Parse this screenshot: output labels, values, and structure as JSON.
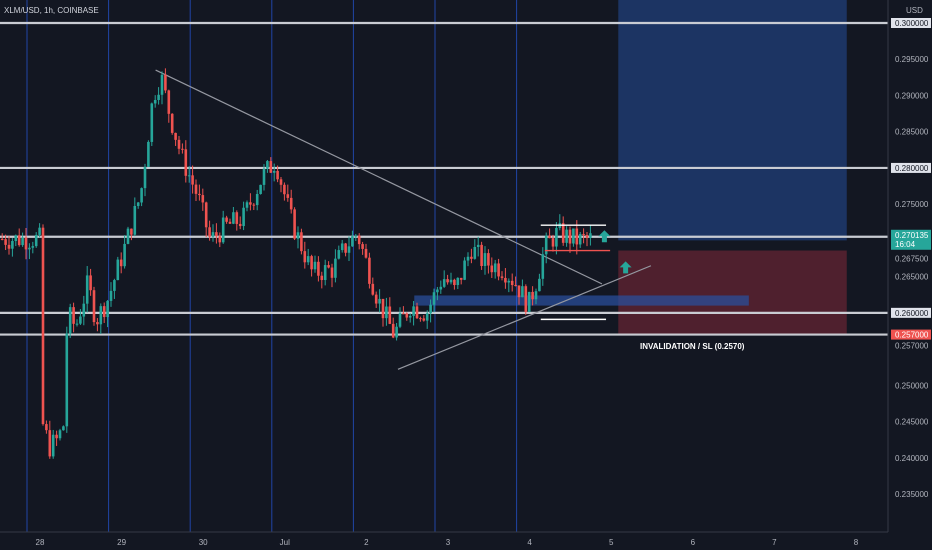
{
  "header": {
    "symbol_title": "XLM/USD, 1h, COINBASE",
    "currency": "USD"
  },
  "colors": {
    "background": "#131722",
    "up": "#26a69a",
    "down": "#ef5350",
    "grid_vertical": "#2962ff",
    "level_line": "#c9ccd3",
    "target_zone": "#1e3a6e",
    "stop_zone": "#5a2230",
    "demand_zone": "#2a4d9a"
  },
  "annotations": {
    "invalidation": "INVALIDATION / SL (0.2570)"
  },
  "price_tags": {
    "last_price": "0.270135",
    "countdown": "16:04",
    "sl_price": "0.257000"
  },
  "chart_data": {
    "type": "candlestick",
    "title": "XLM/USD, 1h, COINBASE",
    "ylabel": "USD",
    "ylim": [
      0.2307,
      0.3034
    ],
    "y_ticks": [
      "0.300000",
      "0.295000",
      "0.290000",
      "0.285000",
      "0.280000",
      "0.275000",
      "0.270000",
      "0.267500",
      "0.265000",
      "0.260000",
      "0.257000",
      "0.250000",
      "0.245000",
      "0.240000",
      "0.235000"
    ],
    "x_ticks": [
      "28",
      "29",
      "30",
      "Jul",
      "2",
      "3",
      "4",
      "5",
      "6",
      "7",
      "8"
    ],
    "horizontal_levels": [
      0.3,
      0.28,
      0.2705,
      0.26,
      0.257
    ],
    "price_path": [
      [
        0,
        0.2445
      ],
      [
        0.08,
        0.2415
      ],
      [
        0.18,
        0.2425
      ],
      [
        0.25,
        0.2445
      ],
      [
        0.3,
        0.26
      ],
      [
        0.4,
        0.258
      ],
      [
        0.55,
        0.264
      ],
      [
        0.65,
        0.259
      ],
      [
        0.8,
        0.262
      ],
      [
        1.0,
        0.269
      ],
      [
        1.2,
        0.2765
      ],
      [
        1.35,
        0.29
      ],
      [
        1.45,
        0.2925
      ],
      [
        1.55,
        0.2875
      ],
      [
        1.7,
        0.2815
      ],
      [
        1.9,
        0.276
      ],
      [
        2.05,
        0.27
      ],
      [
        2.25,
        0.272
      ],
      [
        2.45,
        0.273
      ],
      [
        2.7,
        0.279
      ],
      [
        2.85,
        0.281
      ],
      [
        3.05,
        0.2725
      ],
      [
        3.3,
        0.2655
      ],
      [
        3.55,
        0.266
      ],
      [
        3.7,
        0.269
      ],
      [
        3.85,
        0.271
      ],
      [
        4.1,
        0.262
      ],
      [
        4.3,
        0.257
      ],
      [
        4.5,
        0.261
      ],
      [
        4.7,
        0.26
      ],
      [
        4.9,
        0.265
      ],
      [
        5.05,
        0.263
      ],
      [
        5.25,
        0.269
      ],
      [
        5.4,
        0.267
      ],
      [
        5.55,
        0.2665
      ],
      [
        5.65,
        0.266
      ],
      [
        5.8,
        0.264
      ],
      [
        5.95,
        0.261
      ],
      [
        6.05,
        0.2645
      ],
      [
        6.15,
        0.269
      ],
      [
        6.3,
        0.271
      ],
      [
        6.55,
        0.27
      ],
      [
        6.72,
        0.2702
      ]
    ],
    "trendlines": [
      {
        "from": [
          1.38,
          0.2935
        ],
        "to": [
          6.85,
          0.264
        ]
      },
      {
        "from": [
          4.35,
          0.2522
        ],
        "to": [
          7.45,
          0.2665
        ]
      }
    ],
    "zones": [
      {
        "kind": "target",
        "x": [
          7.05,
          9.85
        ],
        "y": [
          0.27,
          0.3034
        ]
      },
      {
        "kind": "stop",
        "x": [
          7.05,
          9.85
        ],
        "y": [
          0.257,
          0.2686
        ]
      },
      {
        "kind": "demand",
        "x": [
          4.55,
          8.65
        ],
        "y": [
          0.261,
          0.2624
        ]
      }
    ],
    "range_brackets": [
      {
        "x": [
          6.1,
          6.9
        ],
        "y": 0.2721
      },
      {
        "x": [
          6.1,
          6.9
        ],
        "y": 0.2591
      },
      {
        "x": [
          6.15,
          6.95
        ],
        "y": 0.2686
      }
    ],
    "arrows": [
      {
        "x": 6.88,
        "y": 0.2703
      },
      {
        "x": 7.14,
        "y": 0.266
      }
    ]
  }
}
